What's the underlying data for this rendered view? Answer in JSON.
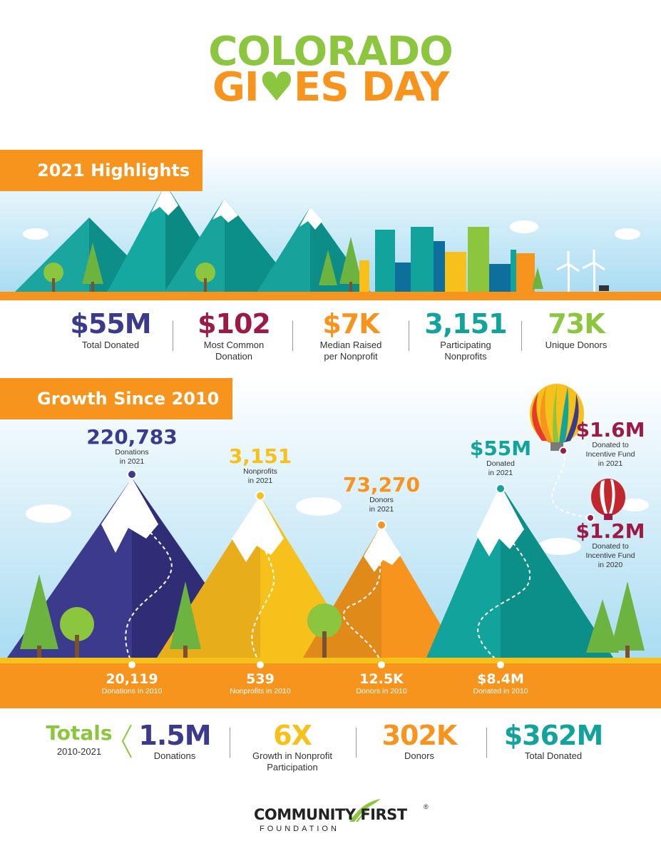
{
  "header": {
    "title_line1": "COLORADO",
    "title_line2": "GI♥ES DAY"
  },
  "highlights": {
    "banner": "2021 Highlights",
    "stats": [
      {
        "value": "$55M",
        "label": "Total Donated",
        "color": "#3b3a8c"
      },
      {
        "value": "$102",
        "label": "Most Common\nDonation",
        "color": "#9b1b44"
      },
      {
        "value": "$7K",
        "label": "Median Raised\nper Nonprofit",
        "color": "#f7941d"
      },
      {
        "value": "3,151",
        "label": "Participating\nNonprofits",
        "color": "#12a39c"
      },
      {
        "value": "73K",
        "label": "Unique Donors",
        "color": "#8cc63f"
      }
    ]
  },
  "growth": {
    "banner": "Growth Since 2010",
    "peaks": [
      {
        "value": "220,783",
        "label": "Donations\nin 2021",
        "color": "#3b3a8c"
      },
      {
        "value": "3,151",
        "label": "Nonprofits\nin 2021",
        "color": "#f5c11a"
      },
      {
        "value": "73,270",
        "label": "Donors\nin 2021",
        "color": "#f7941d"
      },
      {
        "value": "$55M",
        "label": "Donated\nin 2021",
        "color": "#12a39c"
      }
    ],
    "bases": [
      {
        "value": "20,119",
        "label": "Donations in 2010"
      },
      {
        "value": "539",
        "label": "Nonprofits in 2010"
      },
      {
        "value": "12.5K",
        "label": "Donors in 2010"
      },
      {
        "value": "$8.4M",
        "label": "Donated in 2010"
      }
    ],
    "balloons": [
      {
        "value": "$1.6M",
        "label": "Donated to\nIncentive Fund\nin 2021",
        "color": "#9b1b44"
      },
      {
        "value": "$1.2M",
        "label": "Donated to\nIncentive Fund\nin 2020",
        "color": "#9b1b44"
      }
    ]
  },
  "totals": {
    "title": "Totals",
    "years": "2010-2021",
    "items": [
      {
        "value": "1.5M",
        "label": "Donations",
        "color": "#3b3a8c"
      },
      {
        "value": "6X",
        "label": "Growth in Nonprofit\nParticipation",
        "color": "#f5c11a"
      },
      {
        "value": "302K",
        "label": "Donors",
        "color": "#f7941d"
      },
      {
        "value": "$362M",
        "label": "Total Donated",
        "color": "#12a39c"
      }
    ]
  },
  "footer": {
    "logo_name": "COMMUNITY FIRST",
    "logo_sub": "FOUNDATION"
  }
}
